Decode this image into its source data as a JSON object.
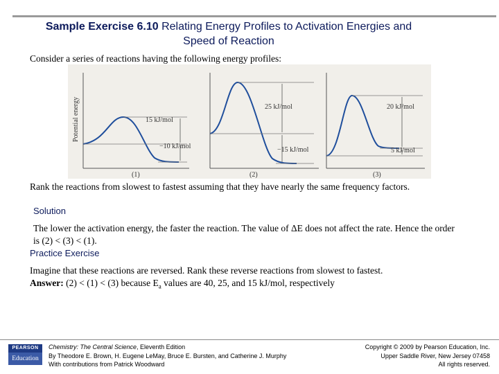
{
  "title": {
    "bold": "Sample Exercise 6.10",
    "rest_line1": "Relating Energy Profiles to Activation Energies and",
    "line2": "Speed of Reaction"
  },
  "intro": "Consider a series of reactions having the following energy profiles:",
  "figure": {
    "y_axis_label": "Potential energy",
    "panels": [
      {
        "number": "(1)",
        "ea_label": "15 kJ/mol",
        "de_label": "−10 kJ/mol"
      },
      {
        "number": "(2)",
        "ea_label": "25 kJ/mol",
        "de_label": "−15 kJ/mol"
      },
      {
        "number": "(3)",
        "ea_label": "20 kJ/mol",
        "de_label": "5 kJ/mol"
      }
    ]
  },
  "question": "Rank the reactions from slowest to fastest assuming that they have nearly the same frequency factors.",
  "solution": {
    "heading": "Solution",
    "text_before": "The lower the activation energy, the faster the reaction. The value of ",
    "delta_symbol": "Δ",
    "text_after": "E does not affect the rate. Hence the order is (2) < (3) < (1)."
  },
  "practice": {
    "heading": "Practice Exercise",
    "text": "Imagine that these reactions are reversed. Rank these reverse reactions from slowest to fastest.",
    "answer_label": "Answer:",
    "answer_part1": " (2) < (1) < (3) because E",
    "answer_sub": "a",
    "answer_part2": " values are 40, 25, and 15 kJ/mol, respectively"
  },
  "footer": {
    "logo_top": "PEARSON",
    "logo_bottom": "Education",
    "book_title": "Chemistry: The Central Science",
    "book_edition": ", Eleventh Edition",
    "authors": "By Theodore E. Brown, H. Eugene LeMay, Bruce E. Bursten, and Catherine J. Murphy",
    "contributions": "With contributions from Patrick Woodward",
    "copyright": "Copyright © 2009 by Pearson Education, Inc.",
    "address": "Upper Saddle River, New Jersey 07458",
    "rights": "All rights reserved."
  },
  "colors": {
    "heading": "#0c1a5b",
    "curve": "#1f4e9c",
    "figure_bg": "#f1efea"
  }
}
